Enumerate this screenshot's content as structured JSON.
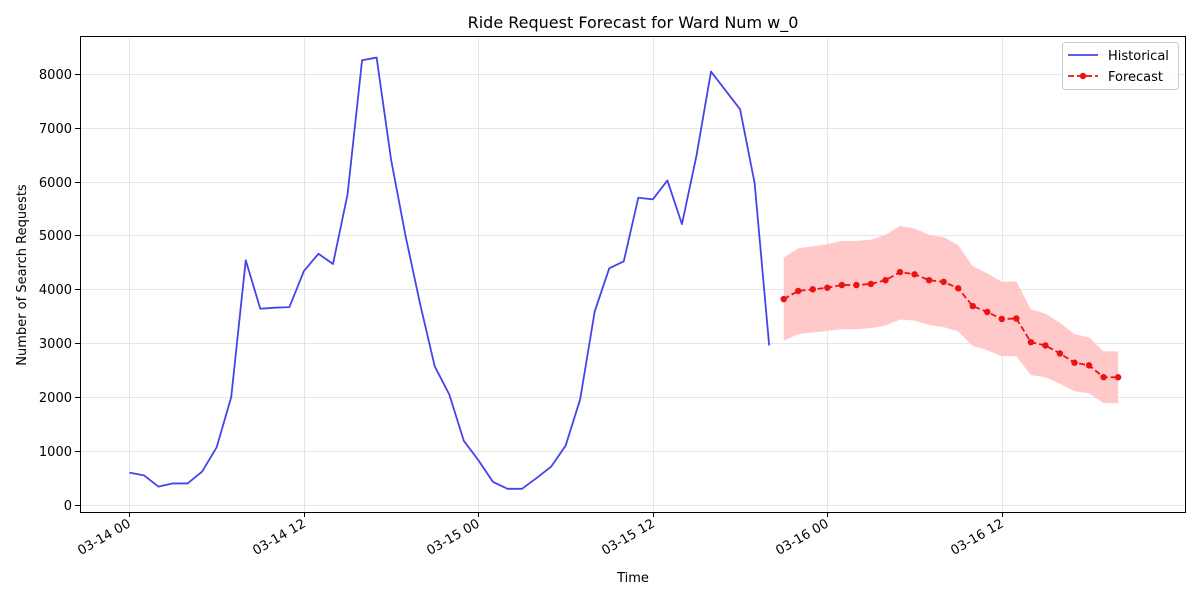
{
  "chart_data": {
    "type": "line",
    "title": "Ride Request Forecast for Ward Num w_0",
    "xlabel": "Time",
    "ylabel": "Number of Search Requests",
    "x_ticks": [
      "03-14 00",
      "03-14 12",
      "03-15 00",
      "03-15 12",
      "03-16 00",
      "03-16 12"
    ],
    "y_ticks": [
      0,
      1000,
      2000,
      3000,
      4000,
      5000,
      6000,
      7000,
      8000
    ],
    "ylim": [
      -130,
      8700
    ],
    "xlim": [
      "03-13 20:36",
      "03-17 00:36"
    ],
    "x_unit": "datetime (month-day hour)",
    "grid": true,
    "legend_position": "top-right",
    "colors": {
      "historical": "#4444ee",
      "forecast": "#ee1111",
      "band": "#ffc0c0"
    },
    "series": [
      {
        "name": "Historical",
        "style": "solid line",
        "x": [
          "03-14 00:00",
          "03-14 01:00",
          "03-14 02:00",
          "03-14 03:00",
          "03-14 04:00",
          "03-14 05:00",
          "03-14 06:00",
          "03-14 07:00",
          "03-14 08:00",
          "03-14 09:00",
          "03-14 10:00",
          "03-14 11:00",
          "03-14 12:00",
          "03-14 13:00",
          "03-14 14:00",
          "03-14 15:00",
          "03-14 16:00",
          "03-14 17:00",
          "03-14 18:00",
          "03-14 19:00",
          "03-14 20:00",
          "03-14 21:00",
          "03-14 22:00",
          "03-14 23:00",
          "03-15 00:00",
          "03-15 01:00",
          "03-15 02:00",
          "03-15 03:00",
          "03-15 04:00",
          "03-15 05:00",
          "03-15 06:00",
          "03-15 07:00",
          "03-15 08:00",
          "03-15 09:00",
          "03-15 10:00",
          "03-15 11:00",
          "03-15 12:00",
          "03-15 13:00",
          "03-15 14:00",
          "03-15 15:00",
          "03-15 16:00",
          "03-15 17:00",
          "03-15 18:00",
          "03-15 19:00",
          "03-15 20:00"
        ],
        "values": [
          600,
          550,
          340,
          400,
          400,
          620,
          1070,
          2000,
          4540,
          3640,
          3660,
          3670,
          4340,
          4660,
          4470,
          5760,
          8250,
          8300,
          6400,
          4980,
          3720,
          2570,
          2050,
          1190,
          830,
          430,
          300,
          300,
          500,
          710,
          1100,
          1960,
          3590,
          4390,
          4520,
          5700,
          5670,
          6020,
          5210,
          6480,
          8040,
          7690,
          7340,
          5970,
          2960
        ]
      },
      {
        "name": "Forecast",
        "style": "dashed line with circle markers",
        "x": [
          "03-15 21:00",
          "03-15 22:00",
          "03-15 23:00",
          "03-16 00:00",
          "03-16 01:00",
          "03-16 02:00",
          "03-16 03:00",
          "03-16 04:00",
          "03-16 05:00",
          "03-16 06:00",
          "03-16 07:00",
          "03-16 08:00",
          "03-16 09:00",
          "03-16 10:00",
          "03-16 11:00",
          "03-16 12:00",
          "03-16 13:00",
          "03-16 14:00",
          "03-16 15:00",
          "03-16 16:00",
          "03-16 17:00",
          "03-16 18:00",
          "03-16 19:00",
          "03-16 20:00"
        ],
        "values": [
          3820,
          3970,
          4000,
          4030,
          4080,
          4080,
          4100,
          4170,
          4320,
          4280,
          4170,
          4140,
          4020,
          3690,
          3580,
          3450,
          3460,
          3020,
          2960,
          2810,
          2640,
          2590,
          2370,
          2370
        ],
        "lower": [
          3050,
          3170,
          3200,
          3230,
          3260,
          3260,
          3280,
          3330,
          3440,
          3420,
          3340,
          3300,
          3220,
          2950,
          2870,
          2760,
          2760,
          2410,
          2370,
          2250,
          2110,
          2070,
          1890,
          1890
        ],
        "upper": [
          4590,
          4760,
          4800,
          4840,
          4900,
          4900,
          4920,
          5010,
          5180,
          5130,
          5010,
          4970,
          4820,
          4430,
          4300,
          4140,
          4150,
          3630,
          3550,
          3380,
          3170,
          3110,
          2850,
          2850
        ]
      }
    ]
  }
}
